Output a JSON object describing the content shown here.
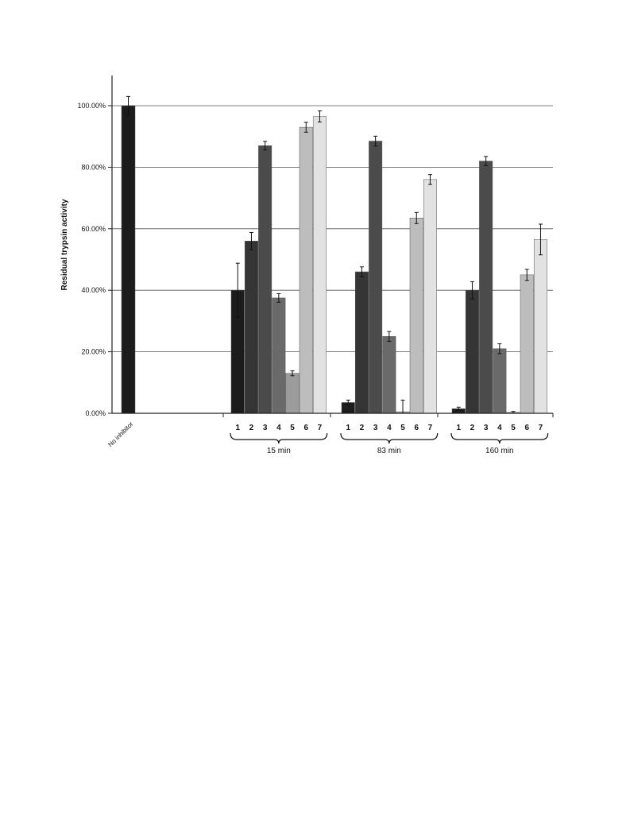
{
  "chart_data": {
    "type": "bar",
    "ylabel": "Residual trypsin activity",
    "xlabel": "",
    "ylim": [
      0,
      100
    ],
    "y_ticks": [
      "0.00%",
      "20.00%",
      "40.00%",
      "60.00%",
      "80.00%",
      "100.00%"
    ],
    "y_tick_values": [
      0,
      20,
      40,
      60,
      80,
      100
    ],
    "grid": true,
    "control": {
      "label": "No inhibitor",
      "value": 100.0,
      "error": 3.0,
      "color": "#1c1c1c"
    },
    "bar_labels": [
      "1",
      "2",
      "3",
      "4",
      "5",
      "6",
      "7"
    ],
    "bar_colors": [
      "#1c1c1c",
      "#353535",
      "#4b4b4b",
      "#6a6a6a",
      "#9c9c9c",
      "#bdbdbd",
      "#e2e2e2"
    ],
    "groups": [
      {
        "label": "15 min",
        "values": [
          40.0,
          56.0,
          87.0,
          37.5,
          13.0,
          93.0,
          96.5
        ],
        "errors": [
          8.8,
          2.8,
          1.4,
          1.4,
          0.8,
          1.6,
          1.8
        ]
      },
      {
        "label": "83 min",
        "values": [
          3.5,
          46.0,
          88.5,
          25.0,
          0.5,
          63.5,
          76.0
        ],
        "errors": [
          0.8,
          1.6,
          1.6,
          1.6,
          3.8,
          1.8,
          1.6
        ]
      },
      {
        "label": "160 min",
        "values": [
          1.5,
          40.0,
          82.0,
          21.0,
          0.3,
          45.0,
          56.5
        ],
        "errors": [
          0.5,
          2.8,
          1.5,
          1.6,
          0.3,
          1.8,
          5.0
        ]
      }
    ]
  }
}
